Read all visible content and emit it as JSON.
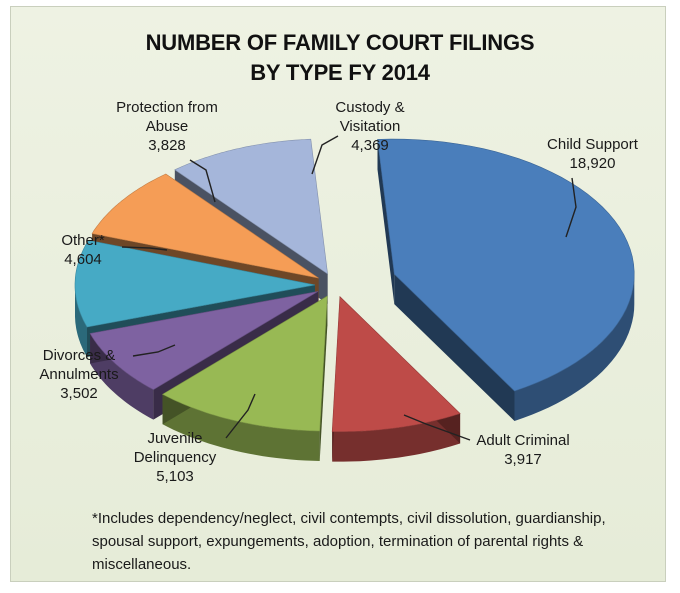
{
  "chart_data": {
    "type": "pie",
    "title": "NUMBER OF FAMILY COURT FILINGS",
    "subtitle": "BY TYPE FY 2014",
    "slices": [
      {
        "label": "Child Support",
        "value": 18920,
        "value_label": "18,920",
        "color": "#4a7ebb"
      },
      {
        "label": "Adult Criminal",
        "value": 3917,
        "value_label": "3,917",
        "color": "#be4b48"
      },
      {
        "label": "Juvenile Delinquency",
        "value": 5103,
        "value_label": "5,103",
        "color": "#98b954"
      },
      {
        "label": "Divorces & Annulments",
        "value": 3502,
        "value_label": "3,502",
        "color": "#7e62a1"
      },
      {
        "label": "Other*",
        "value": 4604,
        "value_label": "4,604",
        "color": "#46aac5"
      },
      {
        "label": "Protection from Abuse",
        "value": 3828,
        "value_label": "3,828",
        "color": "#f59d56"
      },
      {
        "label": "Custody & Visitation",
        "value": 4369,
        "value_label": "4,369",
        "color": "#a5b6da"
      }
    ],
    "legend": "none",
    "footnote": "*Includes dependency/neglect, civil contempts, civil dissolution, guardianship, spousal support, expungements, adoption, termination of parental rights & miscellaneous."
  },
  "labels": {
    "child_support": {
      "l1": "Child Support"
    },
    "adult_criminal": {
      "l1": "Adult Criminal"
    },
    "juvenile": {
      "l1": "Juvenile",
      "l2": "Delinquency"
    },
    "divorces": {
      "l1": "Divorces &",
      "l2": "Annulments"
    },
    "other": {
      "l1": "Other*"
    },
    "protection": {
      "l1": "Protection from",
      "l2": "Abuse"
    },
    "custody": {
      "l1": "Custody &",
      "l2": "Visitation"
    }
  }
}
